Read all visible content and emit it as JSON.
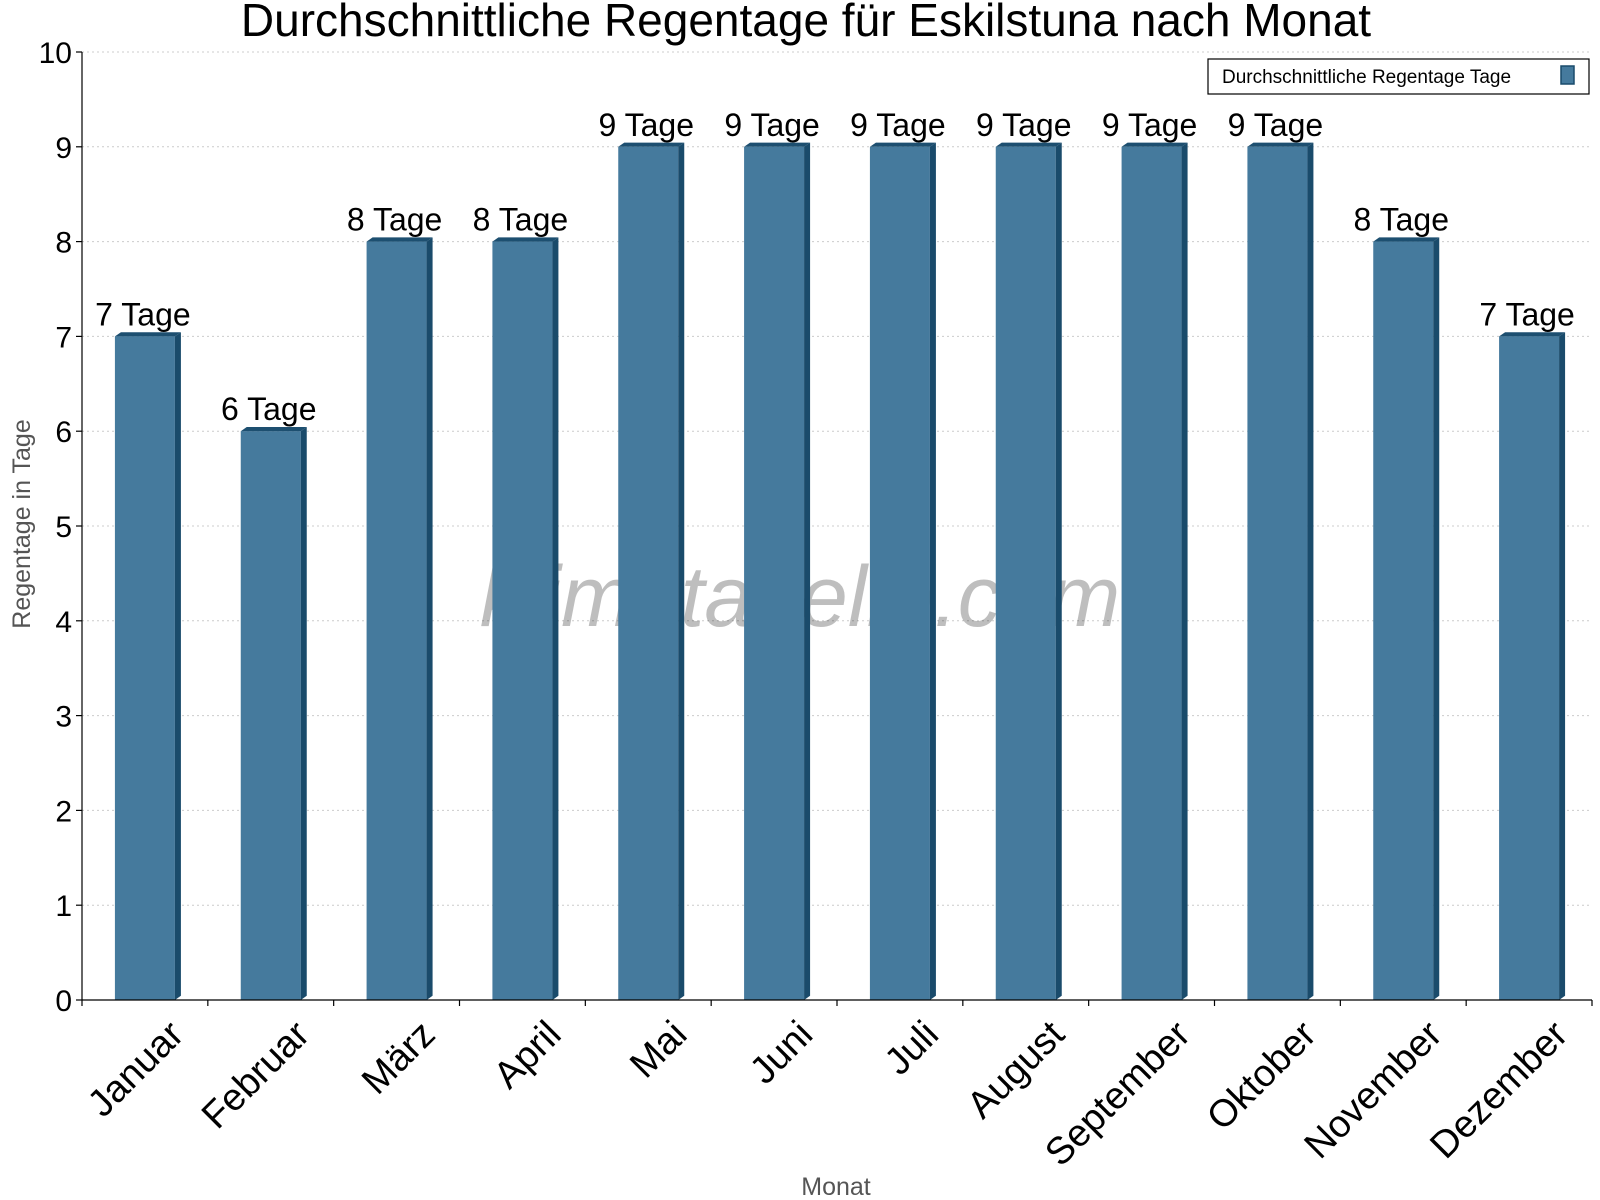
{
  "chart_data": {
    "type": "bar",
    "title": "Durchschnittliche Regentage für Eskilstuna nach Monat",
    "xlabel": "Monat",
    "ylabel": "Regentage in Tage",
    "categories": [
      "Januar",
      "Februar",
      "März",
      "April",
      "Mai",
      "Juni",
      "Juli",
      "August",
      "September",
      "Oktober",
      "November",
      "Dezember"
    ],
    "series": [
      {
        "name": "Durchschnittliche Regentage Tage",
        "values": [
          7,
          6,
          8,
          8,
          9,
          9,
          9,
          9,
          9,
          9,
          8,
          7
        ],
        "labels": [
          "7 Tage",
          "6 Tage",
          "8 Tage",
          "8 Tage",
          "9 Tage",
          "9 Tage",
          "9 Tage",
          "9 Tage",
          "9 Tage",
          "9 Tage",
          "8 Tage",
          "7 Tage"
        ]
      }
    ],
    "ylim": [
      0,
      10
    ],
    "yticks": [
      0,
      1,
      2,
      3,
      4,
      5,
      6,
      7,
      8,
      9,
      10
    ],
    "grid": true,
    "legend_position": "top-right",
    "colors": {
      "bar": "#457a9d",
      "bar_side": "#1a4b6b",
      "bar_top": "#1d4f70",
      "axis_title": "#555555",
      "grid": "#cccccc"
    }
  },
  "watermark": "klimatabelle.com"
}
